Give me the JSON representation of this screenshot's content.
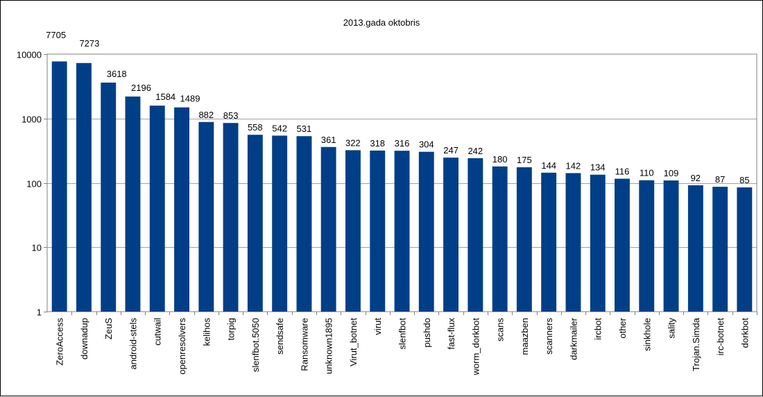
{
  "chart_data": {
    "type": "bar",
    "title": "2013.gada oktobris",
    "xlabel": "",
    "ylabel": "",
    "yscale": "log",
    "ylim": [
      1,
      10000
    ],
    "yticks": [
      "1",
      "10",
      "100",
      "1000",
      "10000"
    ],
    "grid": "horizontal",
    "legend": "none",
    "bar_color": "#003f87",
    "categories": [
      "ZeroAccess",
      "downadup",
      "ZeuS",
      "android-stels",
      "cutwail",
      "openresolvers",
      "kelihos",
      "torpig",
      "slenfbot.5050",
      "sendsafe",
      "Ransomware",
      "unknown1895",
      "Virut_botnet",
      "virut",
      "slenfbot",
      "pushdo",
      "fast-flux",
      "worm_dorkbot",
      "scans",
      "maazben",
      "scanners",
      "darkmailer",
      "ircbot",
      "other",
      "sinkhole",
      "sality",
      "Trojan.Simda",
      "irc-botnet",
      "dorkbot"
    ],
    "values": [
      7705,
      7273,
      3618,
      2196,
      1584,
      1489,
      882,
      853,
      558,
      542,
      531,
      361,
      322,
      318,
      316,
      304,
      247,
      242,
      180,
      175,
      144,
      142,
      134,
      116,
      110,
      109,
      92,
      87,
      85
    ]
  }
}
